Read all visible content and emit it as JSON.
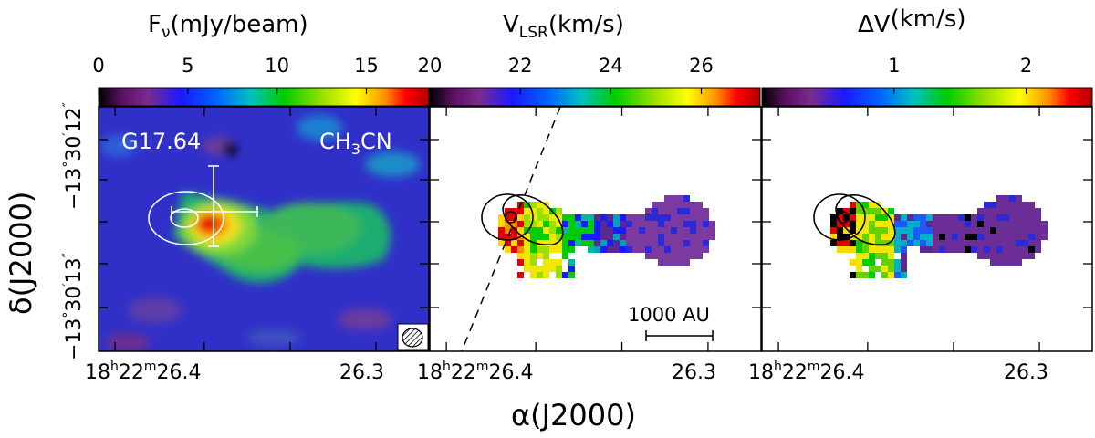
{
  "chart_data": [
    {
      "type": "heatmap",
      "panel": "integrated intensity",
      "colorbar": {
        "label_main": "F",
        "label_sub": "ν",
        "label_rest": "(mJy/beam)",
        "ticks": [
          0,
          5,
          10,
          15
        ],
        "range": [
          0,
          18.5
        ]
      },
      "source": "G17.64",
      "line": {
        "main": "CH",
        "sub": "3",
        "rest": "CN"
      },
      "beam": "hatched beam ellipse",
      "x_tick_labels": [
        {
          "h": "18",
          "m": "22",
          "s": "26.4"
        },
        {
          "s": "26.3"
        }
      ],
      "y_tick_labels": [
        {
          "d": "−13",
          "m": "30",
          "s": "12"
        },
        {
          "d": "−13",
          "m": "30",
          "s": "13"
        }
      ],
      "marker": "cross with error bars (white)",
      "contours": "continuum, white"
    },
    {
      "type": "heatmap",
      "panel": "velocity field",
      "colorbar": {
        "label_main": "V",
        "label_sub": "LSR",
        "label_rest": "(km/s)",
        "ticks": [
          20,
          22,
          24,
          26
        ],
        "range": [
          20,
          27.3
        ]
      },
      "dashed_line": "outflow / cut direction",
      "scalebar": "1000 AU",
      "x_tick_labels": [
        {
          "h": "18",
          "m": "22",
          "s": "26.4"
        },
        {
          "s": "26.3"
        }
      ],
      "contours": "continuum, black"
    },
    {
      "type": "heatmap",
      "panel": "velocity dispersion",
      "colorbar": {
        "label_main": "ΔV",
        "label_sub": "",
        "label_rest": "(km/s)",
        "ticks": [
          1,
          2
        ],
        "range": [
          0,
          2.5
        ]
      },
      "x_tick_labels": [
        {
          "h": "18",
          "m": "22",
          "s": "26.4"
        },
        {
          "s": "26.3"
        }
      ],
      "contours": "continuum, black"
    }
  ],
  "axes": {
    "xlabel_main": "α",
    "xlabel_rest": "(J2000)",
    "ylabel_main": "δ",
    "ylabel_rest": "(J2000)"
  }
}
